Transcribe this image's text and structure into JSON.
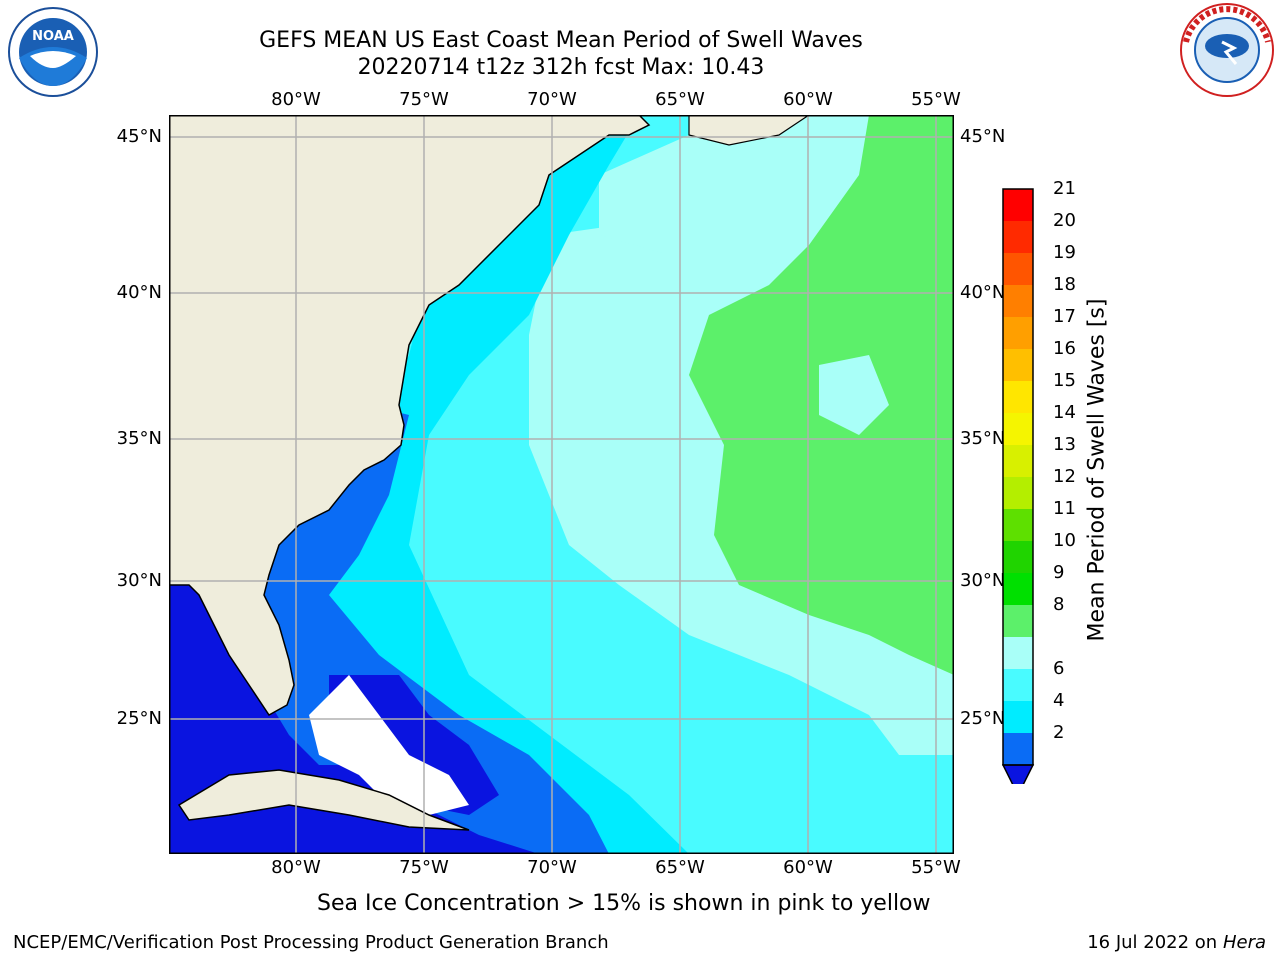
{
  "title": {
    "line1": "GEFS MEAN US East Coast Mean Period of Swell Waves",
    "line2": "20220714 t12z 312h fcst   Max: 10.43"
  },
  "logos": {
    "left": {
      "text": "NOAA",
      "icon": "noaa-logo"
    },
    "right": {
      "icon": "national-weather-service-logo"
    }
  },
  "map": {
    "lon_labels": [
      "80°W",
      "75°W",
      "70°W",
      "65°W",
      "60°W",
      "55°W"
    ],
    "lat_labels": [
      "45°N",
      "40°N",
      "35°N",
      "30°N",
      "25°N"
    ],
    "colors": {
      "land": "#efeddc",
      "ocean_band_2_4": "#0a6cf5",
      "ocean_band_4_6": "#00ecff",
      "ocean_band_6_8": "#49fbff",
      "ocean_band_8_9": "#a9fff8",
      "ocean_band_9_10": "#5cf06a",
      "ocean_band_10_11": "#22e02a",
      "below_2": "#0a14e0",
      "grid": "#b0b0b0"
    }
  },
  "colorbar": {
    "label": "Mean Period of Swell Waves [s]",
    "ticks": [
      "21",
      "20",
      "19",
      "18",
      "17",
      "16",
      "15",
      "14",
      "13",
      "12",
      "11",
      "10",
      "9",
      "8",
      "6",
      "4",
      "2"
    ],
    "colors": [
      "#ff0000",
      "#ff2a00",
      "#ff5500",
      "#ff7f00",
      "#ff9f00",
      "#ffbf00",
      "#ffe600",
      "#f5f500",
      "#d8f000",
      "#b4ee00",
      "#5ee000",
      "#20d400",
      "#00e000",
      "#5cf06a",
      "#a9fff8",
      "#49fbff",
      "#00ecff",
      "#0a6cf5"
    ],
    "underflow_color": "#0a14e0"
  },
  "caption": "Sea Ice Concentration > 15% is shown in pink to yellow",
  "footer": {
    "left": "NCEP/EMC/Verification Post Processing Product Generation Branch",
    "right_date": "16 Jul 2022 on ",
    "right_machine": "Hera"
  }
}
